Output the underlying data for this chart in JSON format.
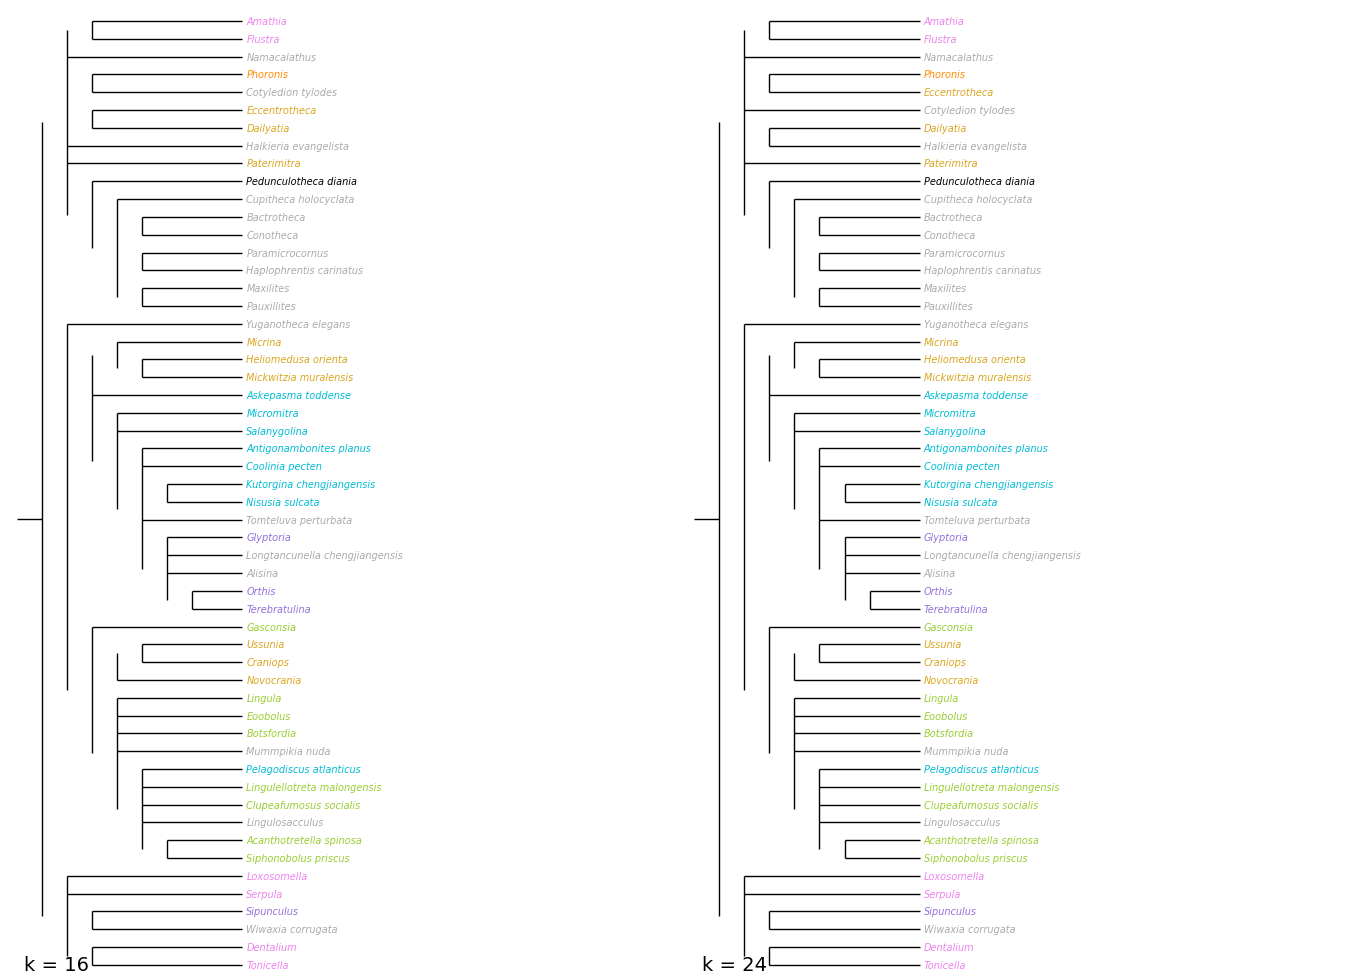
{
  "title_left": "k = 16",
  "title_right": "k = 24",
  "background_color": "#ffffff",
  "colors": {
    "Amathia": "#ee82ee",
    "Flustra": "#ee82ee",
    "Namacalathus": "#aaaaaa",
    "Phoronis": "#ff8c00",
    "Cotyledion tylodes": "#aaaaaa",
    "Eccentrotheca": "#daa520",
    "Dailyatia": "#daa520",
    "Halkieria evangelista": "#aaaaaa",
    "Paterimitra": "#daa520",
    "Pedunculotheca diania": "#000000",
    "Cupitheca holocyclata": "#aaaaaa",
    "Bactrotheca": "#aaaaaa",
    "Conotheca": "#aaaaaa",
    "Paramicrocornus": "#aaaaaa",
    "Haplophrentis carinatus": "#aaaaaa",
    "Maxilites": "#aaaaaa",
    "Pauxillites": "#aaaaaa",
    "Yuganotheca elegans": "#aaaaaa",
    "Micrina": "#daa520",
    "Heliomedusa orienta": "#daa520",
    "Mickwitzia muralensis": "#daa520",
    "Askepasma toddense": "#00bcd4",
    "Micromitra": "#00bcd4",
    "Salanygolina": "#00bcd4",
    "Antigonambonites planus": "#00bcd4",
    "Coolinia pecten": "#00bcd4",
    "Kutorgina chengjiangensis": "#00bcd4",
    "Nisusia sulcata": "#00bcd4",
    "Tomteluva perturbata": "#aaaaaa",
    "Glyptoria": "#9370db",
    "Longtancunella chengjiangensis": "#aaaaaa",
    "Alisina": "#aaaaaa",
    "Orthis": "#9370db",
    "Terebratulina": "#9370db",
    "Gasconsia": "#9acd32",
    "Ussunia": "#daa520",
    "Craniops": "#daa520",
    "Novocrania": "#daa520",
    "Lingula": "#9acd32",
    "Eoobolus": "#9acd32",
    "Botsfordia": "#9acd32",
    "Mummpikia nuda": "#aaaaaa",
    "Pelagodiscus atlanticus": "#00bcd4",
    "Lingulellotreta malongensis": "#9acd32",
    "Clupeafumosus socialis": "#9acd32",
    "Lingulosacculus": "#aaaaaa",
    "Acanthotretella spinosa": "#9acd32",
    "Siphonobolus priscus": "#9acd32",
    "Loxosomella": "#ee82ee",
    "Serpula": "#ee82ee",
    "Sipunculus": "#9370db",
    "Wiwaxia corrugata": "#aaaaaa",
    "Dentalium": "#ee82ee",
    "Tonicella": "#ee82ee"
  },
  "figsize": [
    13.63,
    9.79
  ],
  "dpi": 100,
  "fontsize": 7.0,
  "lw": 1.0
}
